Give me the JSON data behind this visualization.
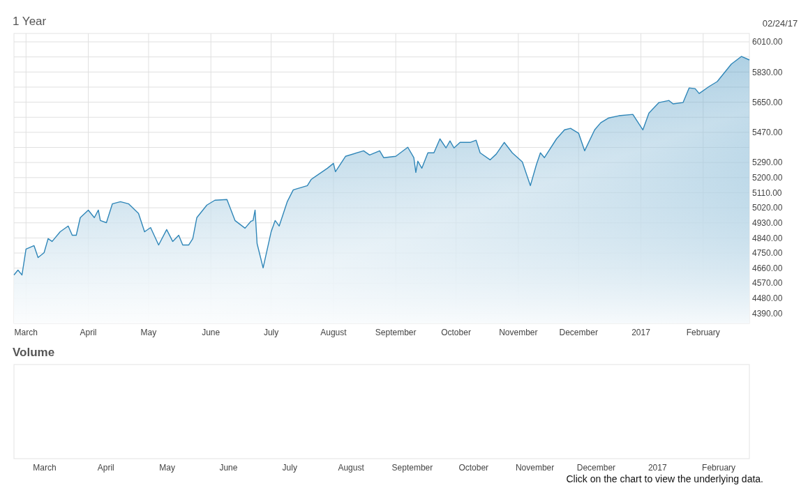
{
  "chart_data": [
    {
      "type": "area",
      "title": "1 Year",
      "subtitle": "02/24/17",
      "x": [
        "2016-02-24",
        "2016-02-26",
        "2016-02-28",
        "2016-03-01",
        "2016-03-05",
        "2016-03-07",
        "2016-03-10",
        "2016-03-12",
        "2016-03-14",
        "2016-03-18",
        "2016-03-22",
        "2016-03-24",
        "2016-03-26",
        "2016-03-28",
        "2016-04-01",
        "2016-04-04",
        "2016-04-06",
        "2016-04-07",
        "2016-04-10",
        "2016-04-13",
        "2016-04-17",
        "2016-04-21",
        "2016-04-26",
        "2016-04-29",
        "2016-05-02",
        "2016-05-06",
        "2016-05-10",
        "2016-05-13",
        "2016-05-16",
        "2016-05-18",
        "2016-05-21",
        "2016-05-23",
        "2016-05-25",
        "2016-05-30",
        "2016-06-03",
        "2016-06-09",
        "2016-06-13",
        "2016-06-18",
        "2016-06-21",
        "2016-06-22",
        "2016-06-23",
        "2016-06-24",
        "2016-06-27",
        "2016-07-01",
        "2016-07-03",
        "2016-07-05",
        "2016-07-09",
        "2016-07-12",
        "2016-07-19",
        "2016-07-21",
        "2016-07-29",
        "2016-08-01",
        "2016-08-02",
        "2016-08-07",
        "2016-08-16",
        "2016-08-19",
        "2016-08-24",
        "2016-08-26",
        "2016-09-01",
        "2016-09-07",
        "2016-09-10",
        "2016-09-11",
        "2016-09-12",
        "2016-09-14",
        "2016-09-17",
        "2016-09-20",
        "2016-09-23",
        "2016-09-26",
        "2016-09-28",
        "2016-09-30",
        "2016-10-03",
        "2016-10-08",
        "2016-10-11",
        "2016-10-13",
        "2016-10-18",
        "2016-10-21",
        "2016-10-25",
        "2016-10-29",
        "2016-11-03",
        "2016-11-07",
        "2016-11-10",
        "2016-11-12",
        "2016-11-14",
        "2016-11-20",
        "2016-11-24",
        "2016-11-27",
        "2016-12-01",
        "2016-12-04",
        "2016-12-09",
        "2016-12-12",
        "2016-12-16",
        "2016-12-21",
        "2016-12-28",
        "2017-01-02",
        "2017-01-05",
        "2017-01-10",
        "2017-01-15",
        "2017-01-17",
        "2017-01-22",
        "2017-01-25",
        "2017-01-28",
        "2017-01-30",
        "2017-02-04",
        "2017-02-08",
        "2017-02-15",
        "2017-02-20",
        "2017-02-24"
      ],
      "series": [
        {
          "color": "#2f86b8",
          "values": [
            4619,
            4648,
            4619,
            4773,
            4794,
            4723,
            4752,
            4836,
            4819,
            4877,
            4911,
            4856,
            4856,
            4961,
            5006,
            4961,
            5006,
            4944,
            4931,
            5044,
            5056,
            5044,
            4986,
            4877,
            4902,
            4798,
            4890,
            4819,
            4856,
            4798,
            4798,
            4836,
            4961,
            5036,
            5065,
            5069,
            4944,
            4898,
            4940,
            4944,
            5006,
            4806,
            4661,
            4877,
            4944,
            4911,
            5056,
            5127,
            5152,
            5190,
            5256,
            5285,
            5235,
            5327,
            5360,
            5335,
            5360,
            5319,
            5327,
            5381,
            5319,
            5231,
            5298,
            5256,
            5348,
            5348,
            5431,
            5377,
            5419,
            5377,
            5410,
            5410,
            5423,
            5348,
            5306,
            5340,
            5410,
            5348,
            5294,
            5152,
            5277,
            5348,
            5319,
            5431,
            5485,
            5494,
            5465,
            5360,
            5485,
            5527,
            5556,
            5569,
            5577,
            5485,
            5585,
            5648,
            5660,
            5640,
            5648,
            5735,
            5731,
            5702,
            5744,
            5773,
            5877,
            5923,
            5902
          ]
        }
      ],
      "xlim": [
        "2016-02-24",
        "2017-02-24"
      ],
      "xticks": [
        {
          "value": "2016-03-01",
          "label": "March"
        },
        {
          "value": "2016-04-01",
          "label": "April"
        },
        {
          "value": "2016-05-01",
          "label": "May"
        },
        {
          "value": "2016-06-01",
          "label": "June"
        },
        {
          "value": "2016-07-01",
          "label": "July"
        },
        {
          "value": "2016-08-01",
          "label": "August"
        },
        {
          "value": "2016-09-01",
          "label": "September"
        },
        {
          "value": "2016-10-01",
          "label": "October"
        },
        {
          "value": "2016-11-01",
          "label": "November"
        },
        {
          "value": "2016-12-01",
          "label": "December"
        },
        {
          "value": "2017-01-01",
          "label": "2017"
        },
        {
          "value": "2017-02-01",
          "label": "February"
        }
      ],
      "ylim": [
        4330,
        6060
      ],
      "yticks": [
        {
          "value": 4390,
          "label": "4390.00"
        },
        {
          "value": 4480,
          "label": "4480.00"
        },
        {
          "value": 4570,
          "label": "4570.00"
        },
        {
          "value": 4660,
          "label": "4660.00"
        },
        {
          "value": 4750,
          "label": "4750.00"
        },
        {
          "value": 4840,
          "label": "4840.00"
        },
        {
          "value": 4930,
          "label": "4930.00"
        },
        {
          "value": 5020,
          "label": "5020.00"
        },
        {
          "value": 5110,
          "label": "5110.00"
        },
        {
          "value": 5200,
          "label": "5200.00"
        },
        {
          "value": 5290,
          "label": "5290.00"
        },
        {
          "value": 5380,
          "label": null
        },
        {
          "value": 5470,
          "label": "5470.00"
        },
        {
          "value": 5560,
          "label": null
        },
        {
          "value": 5650,
          "label": "5650.00"
        },
        {
          "value": 5740,
          "label": null
        },
        {
          "value": 5830,
          "label": "5830.00"
        },
        {
          "value": 5920,
          "label": null
        },
        {
          "value": 6010,
          "label": "6010.00"
        }
      ],
      "grid": true
    },
    {
      "type": "other",
      "title": "Volume",
      "categories": [
        "March",
        "April",
        "May",
        "June",
        "July",
        "August",
        "September",
        "October",
        "November",
        "December",
        "2017",
        "February"
      ],
      "annotations": [
        "Click on the chart to view the underlying data."
      ]
    }
  ]
}
